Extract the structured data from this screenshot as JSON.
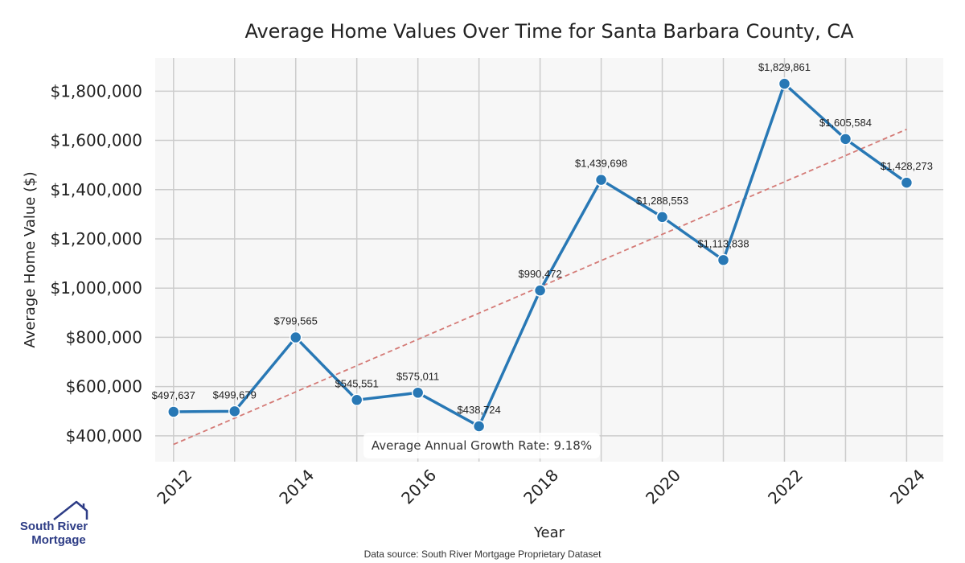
{
  "chart_data": {
    "type": "line",
    "title": "Average Home Values Over Time for Santa Barbara County, CA",
    "xlabel": "Year",
    "ylabel": "Average Home Value ($)",
    "x": [
      2012,
      2013,
      2014,
      2015,
      2016,
      2017,
      2018,
      2019,
      2020,
      2021,
      2022,
      2023,
      2024
    ],
    "series": [
      {
        "name": "Average Home Value",
        "color": "#2878b5",
        "values": [
          497637,
          499679,
          799565,
          545551,
          575011,
          438724,
          990472,
          1439698,
          1288553,
          1113838,
          1829861,
          1605584,
          1428273
        ],
        "labels": [
          "$497,637",
          "$499,679",
          "$799,565",
          "$545,551",
          "$575,011",
          "$438,724",
          "$990,472",
          "$1,439,698",
          "$1,288,553",
          "$1,113,838",
          "$1,829,861",
          "$1,605,584",
          "$1,428,273"
        ]
      }
    ],
    "trendline": {
      "name": "Trend",
      "color": "#d47a76",
      "start": {
        "x": 2012,
        "y": 365000
      },
      "end": {
        "x": 2024,
        "y": 1645000
      }
    },
    "xticks": [
      2012,
      2014,
      2016,
      2018,
      2020,
      2022,
      2024
    ],
    "xtick_labels": [
      "2012",
      "2014",
      "2016",
      "2018",
      "2020",
      "2022",
      "2024"
    ],
    "yticks": [
      400000,
      600000,
      800000,
      1000000,
      1200000,
      1400000,
      1600000,
      1800000
    ],
    "ytick_labels": [
      "$400,000",
      "$600,000",
      "$800,000",
      "$1,000,000",
      "$1,200,000",
      "$1,400,000",
      "$1,600,000",
      "$1,800,000"
    ],
    "xlim": [
      2011.7,
      2024.6
    ],
    "ylim": [
      295000,
      1935000
    ],
    "grid": true,
    "annotation": "Average Annual Growth Rate: 9.18%"
  },
  "logo": {
    "line1": "South River",
    "line2": "Mortgage",
    "color": "#2e3d86"
  },
  "footer": {
    "source": "Data source: South River Mortgage Proprietary Dataset"
  }
}
